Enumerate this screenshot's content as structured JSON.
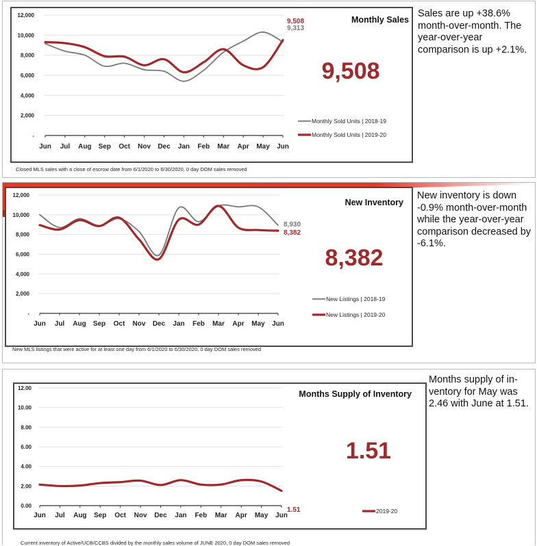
{
  "colors": {
    "current": "#a3282a",
    "prior": "#777777",
    "accent": "#e23a2a",
    "big_number": "#9e2a2b"
  },
  "months": [
    "Jun",
    "Jul",
    "Aug",
    "Sep",
    "Oct",
    "Nov",
    "Dec",
    "Jan",
    "Feb",
    "Mar",
    "Apr",
    "May",
    "Jun"
  ],
  "panels": [
    {
      "commentary": "Sales are up +38.6% month-over-month. The year-over-year comparison is up +2.1%.",
      "caption": "Closed MLS sales with a close of escrow date from 6/1/2020 to 6/30/2020, 0 day DOM sales removed",
      "big_number": "9,508"
    },
    {
      "commentary": "New inventory is down -0.9% month-over-month while the year-over-year comparison decreased by -6.1%.",
      "caption": "New MLS listings that were active for at least one day from 6/1/2020 to 6/30/2020, 0 day DOM sales removed",
      "big_number": "8,382"
    },
    {
      "commentary": "Months supply of in-ventory for May was 2.46 with June at 1.51.",
      "caption": "Current inventory of Active/UCB/CCBS divided by the monthly sales volume of JUNE 2020, 0 day DOM sales removed",
      "big_number": "1.51"
    }
  ],
  "chart_data": [
    {
      "type": "line",
      "title": "Monthly Sales",
      "categories": [
        "Jun",
        "Jul",
        "Aug",
        "Sep",
        "Oct",
        "Nov",
        "Dec",
        "Jan",
        "Feb",
        "Mar",
        "Apr",
        "May",
        "Jun"
      ],
      "ylim": [
        0,
        12000
      ],
      "yticks": [
        0,
        2000,
        4000,
        6000,
        8000,
        10000,
        12000
      ],
      "ytick_labels": [
        "-",
        "2,000",
        "4,000",
        "6,000",
        "8,000",
        "10,000",
        "12,000"
      ],
      "grid": true,
      "legend": "bottom-right",
      "series": [
        {
          "name": "Monthly Sold Units | 2018-19",
          "color": "#777777",
          "end_label": "9,313",
          "values": [
            9150,
            8400,
            8000,
            6900,
            7200,
            6550,
            6400,
            5400,
            6500,
            8300,
            9400,
            10300,
            9313
          ]
        },
        {
          "name": "Monthly Sold Units | 2019-20",
          "color": "#a3282a",
          "end_label": "9,508",
          "values": [
            9300,
            9200,
            8800,
            7900,
            7850,
            7000,
            7600,
            6300,
            7300,
            8600,
            7000,
            6800,
            9508
          ]
        }
      ],
      "big_number": "9,508"
    },
    {
      "type": "line",
      "title": "New Inventory",
      "categories": [
        "Jun",
        "Jul",
        "Aug",
        "Sep",
        "Oct",
        "Nov",
        "Dec",
        "Jan",
        "Feb",
        "Mar",
        "Apr",
        "May",
        "Jun"
      ],
      "ylim": [
        0,
        12000
      ],
      "yticks": [
        0,
        2000,
        4000,
        6000,
        8000,
        10000,
        12000
      ],
      "ytick_labels": [
        "-",
        "2,000",
        "4,000",
        "6,000",
        "8,000",
        "10,000",
        "12,000"
      ],
      "grid": true,
      "legend": "bottom-right",
      "series": [
        {
          "name": "New Listings | 2018-19",
          "color": "#777777",
          "end_label": "8,930",
          "values": [
            10000,
            8700,
            9600,
            8900,
            9600,
            8300,
            5900,
            10700,
            9300,
            10900,
            10800,
            10800,
            8930
          ]
        },
        {
          "name": "New Listings | 2019-20",
          "color": "#a3282a",
          "end_label": "8,382",
          "values": [
            8950,
            8500,
            9450,
            8850,
            9700,
            7500,
            5500,
            9500,
            9000,
            10900,
            8700,
            8450,
            8382
          ]
        }
      ],
      "big_number": "8,382"
    },
    {
      "type": "line",
      "title": "Months Supply of Inventory",
      "categories": [
        "Jun",
        "Jul",
        "Aug",
        "Sep",
        "Oct",
        "Nov",
        "Dec",
        "Jan",
        "Feb",
        "Mar",
        "Apr",
        "May",
        "Jun"
      ],
      "ylim": [
        0,
        12
      ],
      "yticks": [
        0,
        2,
        4,
        6,
        8,
        10,
        12
      ],
      "ytick_labels": [
        "0.00",
        "2.00",
        "4.00",
        "6.00",
        "8.00",
        "10.00",
        "12.00"
      ],
      "grid": true,
      "legend": "bottom-right",
      "series": [
        {
          "name": "2019-20",
          "color": "#a3282a",
          "end_label": "1.51",
          "values": [
            2.15,
            2.0,
            2.05,
            2.3,
            2.4,
            2.55,
            2.1,
            2.6,
            2.15,
            2.15,
            2.6,
            2.46,
            1.51
          ]
        }
      ],
      "big_number": "1.51"
    }
  ]
}
